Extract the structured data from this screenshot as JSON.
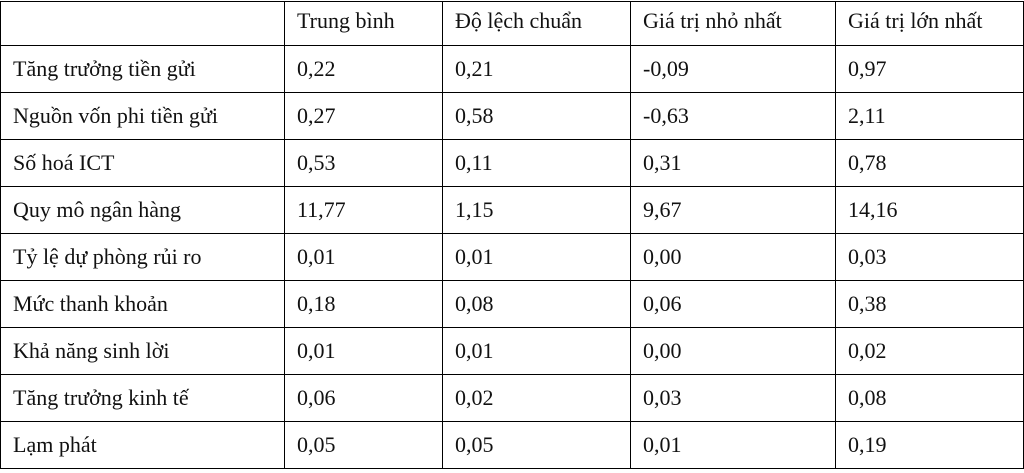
{
  "table": {
    "header": [
      "Trung bình",
      "Độ lệch chuẩn",
      "Giá trị nhỏ nhất",
      "Giá trị lớn nhất"
    ],
    "rows": [
      [
        "Tăng trưởng tiền gửi",
        "0,22",
        "0,21",
        "-0,09",
        "0,97"
      ],
      [
        "Nguồn vốn phi tiền gửi",
        "0,27",
        "0,58",
        "-0,63",
        "2,11"
      ],
      [
        "Số hoá ICT",
        "0,53",
        "0,11",
        "0,31",
        "0,78"
      ],
      [
        "Quy mô ngân hàng",
        "11,77",
        "1,15",
        "9,67",
        "14,16"
      ],
      [
        "Tỷ lệ dự phòng rủi ro",
        "0,01",
        "0,01",
        "0,00",
        "0,03"
      ],
      [
        "Mức thanh khoản",
        "0,18",
        "0,08",
        "0,06",
        "0,38"
      ],
      [
        "Khả năng sinh lời",
        "0,01",
        "0,01",
        "0,00",
        "0,02"
      ],
      [
        "Tăng trưởng kinh tế",
        "0,06",
        "0,02",
        "0,03",
        "0,08"
      ],
      [
        "Lạm phát",
        "0,05",
        "0,05",
        "0,01",
        "0,19"
      ]
    ]
  }
}
